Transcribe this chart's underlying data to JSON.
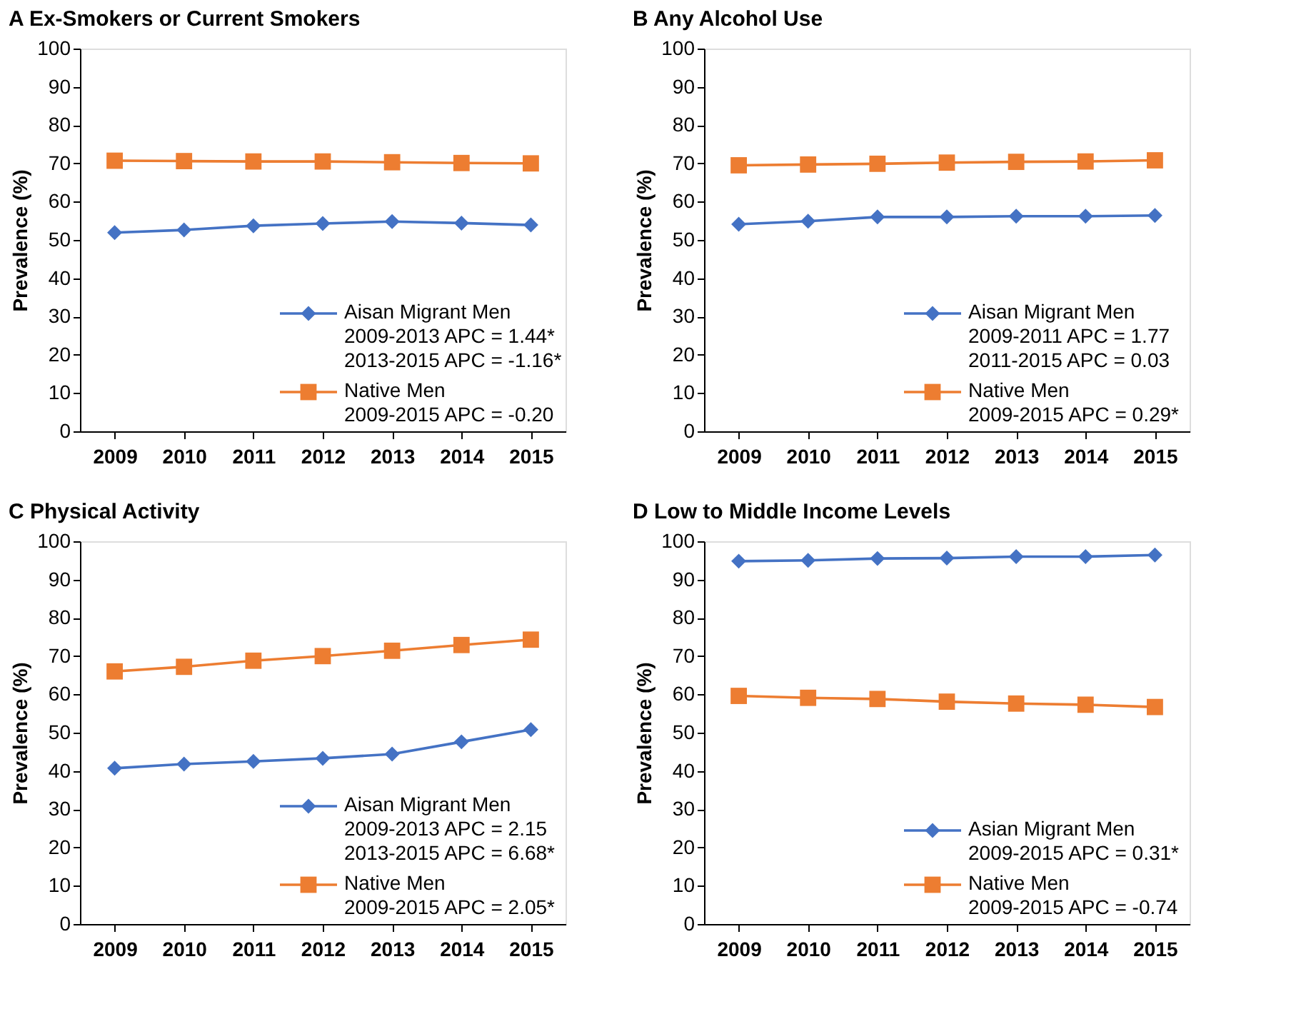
{
  "chart_data": [
    {
      "type": "line",
      "title": "A  Ex-Smokers or Current Smokers",
      "ylabel": "Prevalence (%)",
      "categories": [
        "2009",
        "2010",
        "2011",
        "2012",
        "2013",
        "2014",
        "2015"
      ],
      "ylim": [
        0,
        100
      ],
      "yticks": [
        0,
        10,
        20,
        30,
        40,
        50,
        60,
        70,
        80,
        90,
        100
      ],
      "grid": false,
      "legend": "bottom right",
      "series": [
        {
          "name": "Aisan Migrant Men\n2009-2013 APC = 1.44*\n2013-2015 APC = -1.16*",
          "color": "#4472c4",
          "marker": "diamond",
          "values": [
            51.9,
            52.6,
            53.7,
            54.3,
            54.8,
            54.4,
            53.9
          ]
        },
        {
          "name": "Native Men\n2009-2015 APC = -0.20",
          "color": "#ed7d31",
          "marker": "square",
          "values": [
            70.7,
            70.6,
            70.5,
            70.5,
            70.3,
            70.1,
            70.0
          ]
        }
      ]
    },
    {
      "type": "line",
      "title": "B  Any Alcohol Use",
      "ylabel": "Prevalence (%)",
      "categories": [
        "2009",
        "2010",
        "2011",
        "2012",
        "2013",
        "2014",
        "2015"
      ],
      "ylim": [
        0,
        100
      ],
      "yticks": [
        0,
        10,
        20,
        30,
        40,
        50,
        60,
        70,
        80,
        90,
        100
      ],
      "grid": false,
      "legend": "bottom right",
      "series": [
        {
          "name": "Aisan Migrant Men\n2009-2011 APC = 1.77\n2011-2015 APC = 0.03",
          "color": "#4472c4",
          "marker": "diamond",
          "values": [
            54.1,
            54.9,
            56.0,
            56.0,
            56.2,
            56.2,
            56.4
          ]
        },
        {
          "name": "Native Men\n2009-2015 APC = 0.29*",
          "color": "#ed7d31",
          "marker": "square",
          "values": [
            69.5,
            69.7,
            69.9,
            70.2,
            70.4,
            70.5,
            70.8
          ]
        }
      ]
    },
    {
      "type": "line",
      "title": "C  Physical Activity",
      "ylabel": "Prevalence (%)",
      "categories": [
        "2009",
        "2010",
        "2011",
        "2012",
        "2013",
        "2014",
        "2015"
      ],
      "ylim": [
        0,
        100
      ],
      "yticks": [
        0,
        10,
        20,
        30,
        40,
        50,
        60,
        70,
        80,
        90,
        100
      ],
      "grid": false,
      "legend": "bottom right",
      "series": [
        {
          "name": "Aisan Migrant Men\n2009-2013 APC = 2.15\n2013-2015 APC = 6.68*",
          "color": "#4472c4",
          "marker": "diamond",
          "values": [
            40.7,
            41.8,
            42.5,
            43.3,
            44.4,
            47.6,
            50.8
          ]
        },
        {
          "name": "Native Men\n2009-2015 APC = 2.05*",
          "color": "#ed7d31",
          "marker": "square",
          "values": [
            66.0,
            67.2,
            68.8,
            70.0,
            71.4,
            72.9,
            74.3
          ]
        }
      ]
    },
    {
      "type": "line",
      "title": "D  Low to Middle Income Levels",
      "ylabel": "Prevalence (%)",
      "categories": [
        "2009",
        "2010",
        "2011",
        "2012",
        "2013",
        "2014",
        "2015"
      ],
      "ylim": [
        0,
        100
      ],
      "yticks": [
        0,
        10,
        20,
        30,
        40,
        50,
        60,
        70,
        80,
        90,
        100
      ],
      "grid": false,
      "legend": "bottom right",
      "series": [
        {
          "name": "Asian Migrant Men\n2009-2015 APC = 0.31*",
          "color": "#4472c4",
          "marker": "diamond",
          "values": [
            94.8,
            95.0,
            95.5,
            95.6,
            96.0,
            96.0,
            96.4
          ]
        },
        {
          "name": "Native Men\n2009-2015 APC = -0.74",
          "color": "#ed7d31",
          "marker": "square",
          "values": [
            59.6,
            59.1,
            58.8,
            58.1,
            57.6,
            57.3,
            56.7
          ]
        }
      ]
    }
  ]
}
